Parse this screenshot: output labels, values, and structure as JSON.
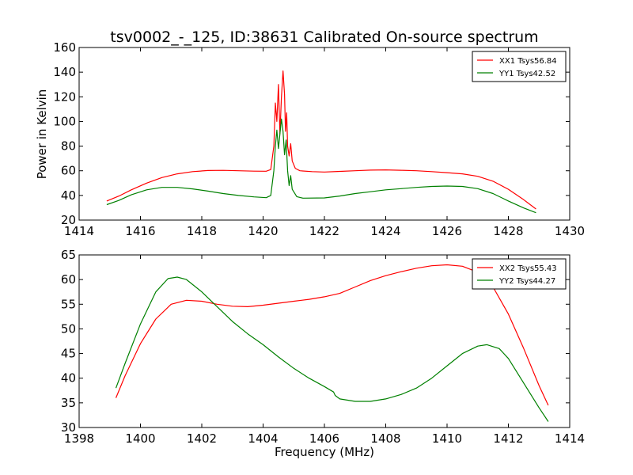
{
  "chart_data": [
    {
      "type": "line",
      "title": "tsv0002_-_125, ID:38631 Calibrated On-source spectrum",
      "xlabel": "",
      "ylabel": "Power in Kelvin",
      "xlim": [
        1414,
        1430
      ],
      "ylim": [
        20,
        160
      ],
      "xticks": [
        "1414",
        "1416",
        "1418",
        "1420",
        "1422",
        "1424",
        "1426",
        "1428",
        "1430"
      ],
      "yticks": [
        "20",
        "40",
        "60",
        "80",
        "100",
        "120",
        "140",
        "160"
      ],
      "legend_position": "top-right",
      "series": [
        {
          "name": "XX1 Tsys56.84",
          "color": "#ff0000",
          "points": [
            [
              1414.9,
              35.5
            ],
            [
              1415.3,
              39.5
            ],
            [
              1415.7,
              44.5
            ],
            [
              1416.2,
              50
            ],
            [
              1416.7,
              54.5
            ],
            [
              1417.2,
              57.5
            ],
            [
              1417.7,
              59.3
            ],
            [
              1418.2,
              60.2
            ],
            [
              1418.7,
              60.3
            ],
            [
              1419.2,
              60
            ],
            [
              1419.7,
              59.7
            ],
            [
              1420.1,
              59.6
            ],
            [
              1420.25,
              61
            ],
            [
              1420.35,
              80
            ],
            [
              1420.4,
              115
            ],
            [
              1420.45,
              100
            ],
            [
              1420.5,
              130
            ],
            [
              1420.55,
              90
            ],
            [
              1420.6,
              120
            ],
            [
              1420.65,
              141
            ],
            [
              1420.7,
              122
            ],
            [
              1420.73,
              92
            ],
            [
              1420.77,
              107
            ],
            [
              1420.8,
              80
            ],
            [
              1420.85,
              72
            ],
            [
              1420.9,
              82
            ],
            [
              1420.95,
              68
            ],
            [
              1421.05,
              62
            ],
            [
              1421.2,
              60
            ],
            [
              1421.6,
              59.3
            ],
            [
              1422,
              59
            ],
            [
              1422.5,
              59.5
            ],
            [
              1423,
              60
            ],
            [
              1423.5,
              60.5
            ],
            [
              1424,
              60.7
            ],
            [
              1424.5,
              60.4
            ],
            [
              1425,
              60
            ],
            [
              1425.5,
              59.3
            ],
            [
              1426,
              58.5
            ],
            [
              1426.5,
              57.5
            ],
            [
              1427,
              55.5
            ],
            [
              1427.5,
              51.5
            ],
            [
              1428,
              45
            ],
            [
              1428.5,
              36.5
            ],
            [
              1428.9,
              29
            ]
          ]
        },
        {
          "name": "YY1 Tsys42.52",
          "color": "#008000",
          "points": [
            [
              1414.9,
              32.5
            ],
            [
              1415.3,
              36
            ],
            [
              1415.7,
              40.5
            ],
            [
              1416.2,
              44.5
            ],
            [
              1416.7,
              46.5
            ],
            [
              1417.2,
              46.5
            ],
            [
              1417.7,
              45.3
            ],
            [
              1418.2,
              43.5
            ],
            [
              1418.7,
              41.5
            ],
            [
              1419.2,
              40
            ],
            [
              1419.7,
              38.8
            ],
            [
              1420.1,
              38.2
            ],
            [
              1420.25,
              40
            ],
            [
              1420.35,
              60
            ],
            [
              1420.4,
              80
            ],
            [
              1420.45,
              93
            ],
            [
              1420.5,
              78
            ],
            [
              1420.55,
              90
            ],
            [
              1420.6,
              102
            ],
            [
              1420.65,
              92
            ],
            [
              1420.7,
              73
            ],
            [
              1420.75,
              85
            ],
            [
              1420.8,
              60
            ],
            [
              1420.85,
              48
            ],
            [
              1420.9,
              56
            ],
            [
              1420.95,
              45
            ],
            [
              1421.1,
              39
            ],
            [
              1421.3,
              37.8
            ],
            [
              1422,
              38
            ],
            [
              1422.5,
              39.5
            ],
            [
              1423,
              41.5
            ],
            [
              1423.5,
              43
            ],
            [
              1424,
              44.5
            ],
            [
              1424.5,
              45.5
            ],
            [
              1425,
              46.5
            ],
            [
              1425.5,
              47.3
            ],
            [
              1426,
              47.6
            ],
            [
              1426.5,
              47.3
            ],
            [
              1427,
              45.5
            ],
            [
              1427.5,
              41.5
            ],
            [
              1428,
              35.5
            ],
            [
              1428.5,
              29.8
            ],
            [
              1428.9,
              26
            ]
          ]
        }
      ]
    },
    {
      "type": "line",
      "title": "",
      "xlabel": "Frequency (MHz)",
      "ylabel": "",
      "xlim": [
        1398,
        1414
      ],
      "ylim": [
        30,
        65
      ],
      "xticks": [
        "1398",
        "1400",
        "1402",
        "1404",
        "1406",
        "1408",
        "1410",
        "1412",
        "1414"
      ],
      "yticks": [
        "30",
        "35",
        "40",
        "45",
        "50",
        "55",
        "60",
        "65"
      ],
      "legend_position": "top-right",
      "series": [
        {
          "name": "XX2 Tsys55.43",
          "color": "#ff0000",
          "points": [
            [
              1399.2,
              36
            ],
            [
              1399.5,
              40.5
            ],
            [
              1400,
              47
            ],
            [
              1400.5,
              52
            ],
            [
              1401,
              55
            ],
            [
              1401.5,
              55.8
            ],
            [
              1402,
              55.6
            ],
            [
              1402.5,
              55
            ],
            [
              1403,
              54.6
            ],
            [
              1403.5,
              54.5
            ],
            [
              1404,
              54.8
            ],
            [
              1404.5,
              55.2
            ],
            [
              1405,
              55.6
            ],
            [
              1405.5,
              56
            ],
            [
              1406,
              56.5
            ],
            [
              1406.5,
              57.2
            ],
            [
              1407,
              58.5
            ],
            [
              1407.5,
              59.8
            ],
            [
              1408,
              60.8
            ],
            [
              1408.5,
              61.6
            ],
            [
              1409,
              62.3
            ],
            [
              1409.5,
              62.8
            ],
            [
              1410,
              63
            ],
            [
              1410.5,
              62.7
            ],
            [
              1411,
              61.5
            ],
            [
              1411.5,
              58.5
            ],
            [
              1412,
              53
            ],
            [
              1412.5,
              46
            ],
            [
              1413,
              38.5
            ],
            [
              1413.3,
              34.5
            ]
          ]
        },
        {
          "name": "YY2 Tsys44.27",
          "color": "#008000",
          "points": [
            [
              1399.2,
              38
            ],
            [
              1399.5,
              43
            ],
            [
              1400,
              51
            ],
            [
              1400.5,
              57.5
            ],
            [
              1400.9,
              60.2
            ],
            [
              1401.2,
              60.5
            ],
            [
              1401.5,
              60
            ],
            [
              1402,
              57.5
            ],
            [
              1402.5,
              54.5
            ],
            [
              1403,
              51.5
            ],
            [
              1403.5,
              49
            ],
            [
              1404,
              46.8
            ],
            [
              1404.5,
              44.3
            ],
            [
              1405,
              42
            ],
            [
              1405.5,
              40
            ],
            [
              1406,
              38.3
            ],
            [
              1406.3,
              37.2
            ],
            [
              1406.35,
              36.5
            ],
            [
              1406.5,
              35.8
            ],
            [
              1407,
              35.3
            ],
            [
              1407.5,
              35.3
            ],
            [
              1408,
              35.8
            ],
            [
              1408.5,
              36.7
            ],
            [
              1409,
              38
            ],
            [
              1409.5,
              40
            ],
            [
              1410,
              42.5
            ],
            [
              1410.5,
              45
            ],
            [
              1411,
              46.5
            ],
            [
              1411.3,
              46.8
            ],
            [
              1411.7,
              46
            ],
            [
              1412,
              44
            ],
            [
              1412.5,
              39
            ],
            [
              1413,
              34
            ],
            [
              1413.3,
              31.2
            ]
          ]
        }
      ]
    }
  ]
}
